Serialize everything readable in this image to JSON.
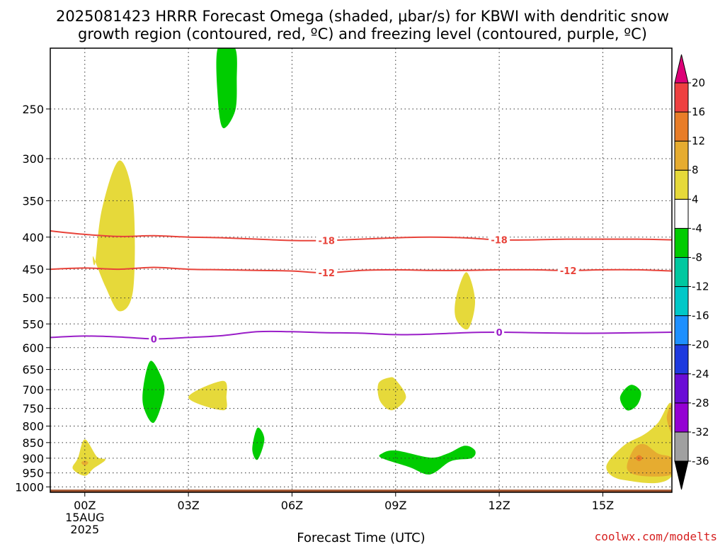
{
  "title": {
    "line1": "2025081423 HRRR Forecast Omega (shaded, μbar/s) for KBWI with dendritic snow",
    "line2": "growth region (contoured, red, ºC) and freezing level (contoured, purple, ºC)"
  },
  "credit": "coolwx.com/modelts",
  "chart_data": {
    "type": "contour",
    "title": "2025081423 HRRR Forecast Omega (shaded, μbar/s) for KBWI with dendritic snow growth region (contoured, red, ºC) and freezing level (contoured, purple, ºC)",
    "xlabel": "Forecast Time (UTC)",
    "ylabel": "",
    "x_unit": "forecast hour from 00Z 15AUG 2025",
    "xlim": [
      -1,
      17
    ],
    "y_scale": "reversed, log-pressure",
    "ylim": [
      1020,
      200
    ],
    "x_ticks": [
      {
        "x": 0,
        "lines": [
          "00Z",
          "15AUG",
          "2025"
        ]
      },
      {
        "x": 3,
        "lines": [
          "03Z"
        ]
      },
      {
        "x": 6,
        "lines": [
          "06Z"
        ]
      },
      {
        "x": 9,
        "lines": [
          "09Z"
        ]
      },
      {
        "x": 12,
        "lines": [
          "12Z"
        ]
      },
      {
        "x": 15,
        "lines": [
          "15Z"
        ]
      }
    ],
    "y_ticks": [
      250,
      300,
      350,
      400,
      450,
      500,
      550,
      600,
      650,
      700,
      750,
      800,
      850,
      900,
      950,
      1000
    ],
    "grid": "dotted",
    "terrain_band": {
      "pressure": 1010,
      "color": "#a0522d"
    },
    "colorbar": {
      "levels": [
        -36,
        -32,
        -28,
        -24,
        -20,
        -16,
        -12,
        -8,
        -4,
        4,
        8,
        12,
        16,
        20
      ],
      "bands_bottom_to_top": [
        "#000000",
        "#a0a0a0",
        "#9400d3",
        "#6a0dd6",
        "#1e3adf",
        "#1e90ff",
        "#00c8c8",
        "#00c8a0",
        "#00cc00",
        "#ffffff",
        "#e6d93a",
        "#e6ac30",
        "#e87d28",
        "#ee4040",
        "#dd0077"
      ]
    },
    "contours": [
      {
        "name": "-18",
        "color": "#e8433a",
        "label_positions": [
          7,
          12
        ],
        "points": [
          [
            -1,
            391
          ],
          [
            0,
            396
          ],
          [
            1,
            399
          ],
          [
            2,
            398
          ],
          [
            3,
            400
          ],
          [
            4,
            401
          ],
          [
            5,
            403
          ],
          [
            6,
            405
          ],
          [
            7,
            405
          ],
          [
            8,
            403
          ],
          [
            9,
            401
          ],
          [
            10,
            400
          ],
          [
            11,
            401
          ],
          [
            12,
            404
          ],
          [
            13,
            404
          ],
          [
            14,
            403
          ],
          [
            15,
            403
          ],
          [
            16,
            403
          ],
          [
            17,
            404
          ]
        ]
      },
      {
        "name": "-12",
        "color": "#e8433a",
        "label_positions": [
          7,
          14
        ],
        "points": [
          [
            -1,
            450
          ],
          [
            0,
            448
          ],
          [
            1,
            450
          ],
          [
            2,
            447
          ],
          [
            3,
            450
          ],
          [
            4,
            451
          ],
          [
            5,
            452
          ],
          [
            6,
            453
          ],
          [
            7,
            456
          ],
          [
            8,
            452
          ],
          [
            9,
            451
          ],
          [
            10,
            452
          ],
          [
            11,
            452
          ],
          [
            12,
            451
          ],
          [
            13,
            451
          ],
          [
            14,
            452
          ],
          [
            15,
            451
          ],
          [
            16,
            451
          ],
          [
            17,
            453
          ]
        ]
      },
      {
        "name": "0",
        "color": "#9a1ec8",
        "label_positions": [
          2,
          12
        ],
        "points": [
          [
            -1,
            578
          ],
          [
            0,
            575
          ],
          [
            1,
            577
          ],
          [
            2,
            581
          ],
          [
            3,
            578
          ],
          [
            4,
            574
          ],
          [
            5,
            566
          ],
          [
            6,
            566
          ],
          [
            7,
            568
          ],
          [
            8,
            569
          ],
          [
            9,
            572
          ],
          [
            10,
            571
          ],
          [
            11,
            568
          ],
          [
            12,
            567
          ],
          [
            13,
            568
          ],
          [
            14,
            569
          ],
          [
            15,
            569
          ],
          [
            16,
            568
          ],
          [
            17,
            567
          ]
        ]
      }
    ],
    "omega_areas": [
      {
        "range": "4 to 8",
        "color": "#e6d93a",
        "points": [
          [
            0.3,
            440
          ],
          [
            0.5,
            360
          ],
          [
            1.0,
            302
          ],
          [
            1.4,
            350
          ],
          [
            1.4,
            485
          ],
          [
            1.0,
            525
          ],
          [
            0.6,
            480
          ],
          [
            0.25,
            430
          ]
        ]
      },
      {
        "range": "4 to 8",
        "color": "#e6d93a",
        "points": [
          [
            -0.2,
            900
          ],
          [
            0.0,
            840
          ],
          [
            0.35,
            895
          ],
          [
            0.6,
            905
          ],
          [
            0.25,
            935
          ],
          [
            0.0,
            960
          ],
          [
            -0.35,
            935
          ]
        ]
      },
      {
        "range": "8 to 12",
        "color": "#e6ac30",
        "points": [
          [
            -0.1,
            915
          ],
          [
            0.0,
            908
          ],
          [
            0.1,
            915
          ],
          [
            0.0,
            925
          ]
        ]
      },
      {
        "range": "4 to 8",
        "color": "#e6d93a",
        "points": [
          [
            3.0,
            720
          ],
          [
            4.0,
            678
          ],
          [
            4.1,
            720
          ],
          [
            4.0,
            755
          ]
        ]
      },
      {
        "range": "4 to 8",
        "color": "#e6d93a",
        "points": [
          [
            10.75,
            500
          ],
          [
            11.05,
            455
          ],
          [
            11.3,
            505
          ],
          [
            11.1,
            560
          ],
          [
            10.75,
            540
          ]
        ]
      },
      {
        "range": "4 to 8",
        "color": "#e6d93a",
        "points": [
          [
            8.5,
            685
          ],
          [
            8.8,
            670
          ],
          [
            9.0,
            675
          ],
          [
            9.3,
            720
          ],
          [
            8.9,
            755
          ],
          [
            8.55,
            730
          ]
        ]
      },
      {
        "range": "4 to 8",
        "color": "#e6d93a",
        "points": [
          [
            15.1,
            930
          ],
          [
            15.6,
            860
          ],
          [
            16.2,
            825
          ],
          [
            16.6,
            790
          ],
          [
            17.0,
            740
          ],
          [
            17.0,
            960
          ],
          [
            15.6,
            975
          ]
        ]
      },
      {
        "range": "8 to 12",
        "color": "#e6ac30",
        "points": [
          [
            15.7,
            935
          ],
          [
            15.9,
            870
          ],
          [
            16.2,
            855
          ],
          [
            16.6,
            885
          ],
          [
            17.0,
            900
          ],
          [
            17.0,
            955
          ],
          [
            16.1,
            960
          ]
        ]
      },
      {
        "range": "8 to 12",
        "color": "#e6ac30",
        "points": [
          [
            16.85,
            775
          ],
          [
            17.0,
            740
          ],
          [
            17.0,
            820
          ]
        ]
      },
      {
        "range": "12 to 16",
        "color": "#e87d28",
        "points": [
          [
            15.95,
            900
          ],
          [
            16.05,
            890
          ],
          [
            16.15,
            900
          ],
          [
            16.05,
            910
          ]
        ]
      },
      {
        "range": "-8 to -4",
        "color": "#00cc00",
        "points": [
          [
            3.85,
            200
          ],
          [
            4.35,
            200
          ],
          [
            4.4,
            225
          ],
          [
            4.35,
            252
          ],
          [
            4.0,
            268
          ],
          [
            3.85,
            240
          ]
        ]
      },
      {
        "range": "-8 to -4",
        "color": "#00cc00",
        "points": [
          [
            1.7,
            690
          ],
          [
            1.9,
            630
          ],
          [
            2.2,
            665
          ],
          [
            2.3,
            710
          ],
          [
            2.0,
            790
          ],
          [
            1.7,
            745
          ]
        ]
      },
      {
        "range": "-8 to -4",
        "color": "#00cc00",
        "points": [
          [
            4.85,
            870
          ],
          [
            5.0,
            805
          ],
          [
            5.2,
            840
          ],
          [
            5.0,
            905
          ]
        ]
      },
      {
        "range": "-8 to -4",
        "color": "#00cc00",
        "points": [
          [
            8.6,
            885
          ],
          [
            9.0,
            875
          ],
          [
            10.0,
            898
          ],
          [
            10.5,
            885
          ],
          [
            11.0,
            860
          ],
          [
            11.3,
            875
          ],
          [
            11.2,
            900
          ],
          [
            10.6,
            910
          ],
          [
            10.0,
            955
          ],
          [
            9.4,
            930
          ],
          [
            8.6,
            900
          ]
        ]
      },
      {
        "range": "-8 to -4",
        "color": "#00cc00",
        "points": [
          [
            15.5,
            720
          ],
          [
            15.8,
            688
          ],
          [
            16.1,
            705
          ],
          [
            16.0,
            740
          ],
          [
            15.7,
            755
          ]
        ]
      }
    ]
  }
}
